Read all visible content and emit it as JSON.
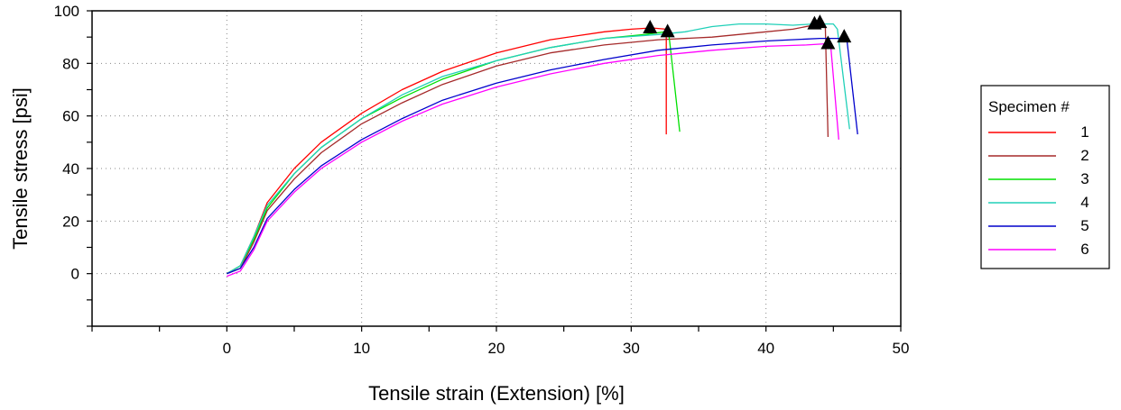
{
  "chart_data": {
    "type": "line",
    "xlabel": "Tensile strain (Extension) [%]",
    "ylabel": "Tensile stress [psi]",
    "xlim": [
      -10,
      50
    ],
    "ylim": [
      -20,
      100
    ],
    "x_ticks": [
      0,
      10,
      20,
      30,
      40,
      50
    ],
    "y_ticks": [
      0,
      20,
      40,
      60,
      80,
      100
    ],
    "grid": "dotted",
    "legend": {
      "title": "Specimen #",
      "placement": "right"
    },
    "series": [
      {
        "name": "1",
        "color": "#ff0000",
        "x": [
          0,
          1,
          2,
          3,
          5,
          7,
          10,
          13,
          16,
          20,
          24,
          28,
          30,
          31.5,
          32.6,
          32.6
        ],
        "y": [
          0,
          3,
          14,
          27,
          40,
          50,
          61,
          70,
          77,
          84,
          89,
          92,
          93,
          93.5,
          93,
          53
        ]
      },
      {
        "name": "2",
        "color": "#a52a2a",
        "x": [
          0,
          1,
          2,
          3,
          5,
          7,
          10,
          13,
          16,
          20,
          24,
          28,
          32,
          36,
          40,
          42,
          43.5,
          44.2,
          44.4,
          44.6
        ],
        "y": [
          0,
          2,
          12,
          24,
          36,
          46,
          57,
          65,
          72,
          79,
          84,
          87,
          89,
          90,
          92,
          93,
          94.5,
          95,
          94,
          52
        ]
      },
      {
        "name": "3",
        "color": "#00e000",
        "x": [
          0,
          1,
          2,
          3,
          5,
          7,
          10,
          13,
          16,
          20,
          24,
          28,
          31,
          32.5,
          32.8,
          33.6
        ],
        "y": [
          0,
          3,
          13,
          25,
          38,
          48,
          59,
          67,
          74,
          81,
          86,
          89.5,
          91,
          92,
          91,
          54
        ]
      },
      {
        "name": "4",
        "color": "#20d0b8",
        "x": [
          0,
          1,
          2,
          3,
          5,
          7,
          10,
          13,
          16,
          20,
          24,
          28,
          32,
          34,
          36,
          38,
          40,
          42,
          43.5,
          45,
          45.3,
          46.2
        ],
        "y": [
          0,
          3,
          14,
          26,
          38,
          48,
          59,
          68,
          75,
          81,
          86,
          89.5,
          91,
          92,
          94,
          95,
          95,
          94.5,
          95,
          95,
          93,
          55
        ]
      },
      {
        "name": "5",
        "color": "#0000cc",
        "x": [
          0,
          1,
          2,
          3,
          5,
          7,
          10,
          13,
          16,
          20,
          24,
          28,
          32,
          36,
          40,
          44,
          45.6,
          46,
          46.8
        ],
        "y": [
          0,
          2,
          10,
          21,
          32,
          41,
          51,
          59,
          66,
          72.5,
          77.5,
          81.5,
          85,
          87,
          88.5,
          89.5,
          89.5,
          89,
          53
        ]
      },
      {
        "name": "6",
        "color": "#ff00ff",
        "x": [
          0,
          1,
          2,
          3,
          5,
          7,
          10,
          13,
          16,
          20,
          24,
          28,
          32,
          36,
          40,
          43,
          44.5,
          44.8,
          45.4
        ],
        "y": [
          -1,
          1,
          9,
          20,
          31,
          40,
          50,
          58,
          64.5,
          71,
          76,
          80,
          83,
          85,
          86.5,
          87,
          87.5,
          87,
          51
        ]
      }
    ],
    "break_markers": [
      {
        "series": "1",
        "x": 31.4,
        "y": 93.5
      },
      {
        "series": "3",
        "x": 32.7,
        "y": 92
      },
      {
        "series": "2",
        "x": 43.6,
        "y": 95
      },
      {
        "series": "4",
        "x": 44,
        "y": 95.5
      },
      {
        "series": "6",
        "x": 44.6,
        "y": 87.5
      },
      {
        "series": "5",
        "x": 45.8,
        "y": 90
      }
    ]
  }
}
